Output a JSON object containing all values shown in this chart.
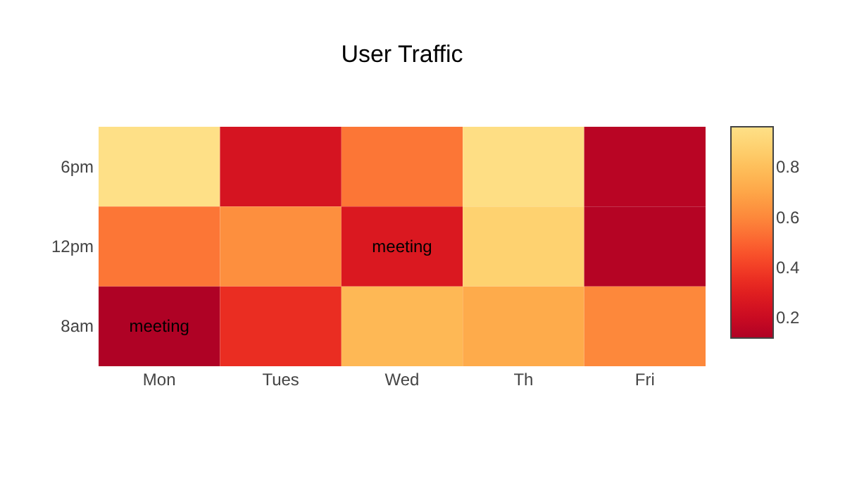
{
  "chart_data": {
    "type": "heatmap",
    "title": "User Traffic",
    "categories": [
      "Mon",
      "Tues",
      "Wed",
      "Th",
      "Fri"
    ],
    "y_categories": [
      "6pm",
      "12pm",
      "8am"
    ],
    "cells": [
      [
        0.96,
        0.25,
        0.55,
        0.95,
        0.15
      ],
      [
        0.55,
        0.62,
        0.27,
        0.88,
        0.14
      ],
      [
        0.12,
        0.35,
        0.77,
        0.72,
        0.6
      ]
    ],
    "cell_labels": [
      [
        null,
        null,
        null,
        null,
        null
      ],
      [
        null,
        null,
        "meeting",
        null,
        null
      ],
      [
        "meeting",
        null,
        null,
        null,
        null
      ]
    ],
    "clim": [
      0.12,
      0.96
    ],
    "cticks": [
      0.2,
      0.4,
      0.6,
      0.8
    ]
  }
}
